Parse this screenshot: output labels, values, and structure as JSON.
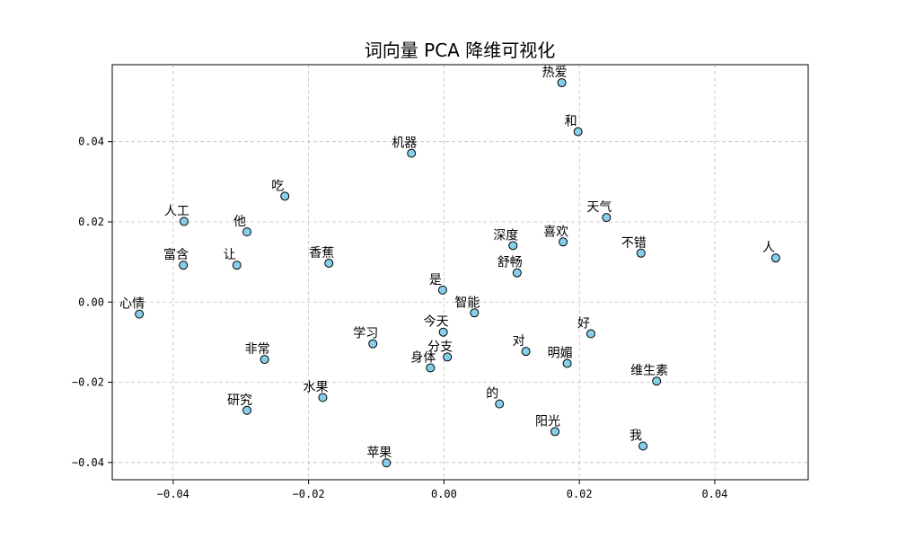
{
  "chart_data": {
    "type": "scatter",
    "title": "词向量 PCA 降维可视化",
    "xlabel": "",
    "ylabel": "",
    "xlim": [
      -0.049,
      0.0538
    ],
    "ylim": [
      -0.0443,
      0.0592
    ],
    "xticks": [
      -0.04,
      -0.02,
      0.0,
      0.02,
      0.04
    ],
    "yticks": [
      -0.04,
      -0.02,
      0.0,
      0.02,
      0.04
    ],
    "xtick_labels": [
      "−0.04",
      "−0.02",
      "0.00",
      "0.02",
      "0.04"
    ],
    "ytick_labels": [
      "−0.04",
      "−0.02",
      "0.00",
      "0.02",
      "0.04"
    ],
    "grid": true,
    "point_color": "#87ceeb",
    "points": [
      {
        "label": "热爱",
        "x": 0.0174,
        "y": 0.0547
      },
      {
        "label": "和",
        "x": 0.0198,
        "y": 0.0425
      },
      {
        "label": "机器",
        "x": -0.0048,
        "y": 0.0371
      },
      {
        "label": "吃",
        "x": -0.0235,
        "y": 0.0264
      },
      {
        "label": "人工",
        "x": -0.0384,
        "y": 0.0201
      },
      {
        "label": "他",
        "x": -0.0291,
        "y": 0.0175
      },
      {
        "label": "天气",
        "x": 0.024,
        "y": 0.0211
      },
      {
        "label": "深度",
        "x": 0.0102,
        "y": 0.0141
      },
      {
        "label": "喜欢",
        "x": 0.0176,
        "y": 0.015
      },
      {
        "label": "不错",
        "x": 0.0291,
        "y": 0.0122
      },
      {
        "label": "人",
        "x": 0.049,
        "y": 0.011
      },
      {
        "label": "富含",
        "x": -0.0385,
        "y": 0.0092
      },
      {
        "label": "让",
        "x": -0.0306,
        "y": 0.0092
      },
      {
        "label": "香蕉",
        "x": -0.017,
        "y": 0.0097
      },
      {
        "label": "舒畅",
        "x": 0.0108,
        "y": 0.0073
      },
      {
        "label": "是",
        "x": -0.0002,
        "y": 0.003
      },
      {
        "label": "智能",
        "x": 0.0045,
        "y": -0.0027
      },
      {
        "label": "心情",
        "x": -0.045,
        "y": -0.003
      },
      {
        "label": "今天",
        "x": -0.0001,
        "y": -0.0075
      },
      {
        "label": "好",
        "x": 0.0217,
        "y": -0.0079
      },
      {
        "label": "学习",
        "x": -0.0105,
        "y": -0.0104
      },
      {
        "label": "对",
        "x": 0.0121,
        "y": -0.0123
      },
      {
        "label": "非常",
        "x": -0.0265,
        "y": -0.0143
      },
      {
        "label": "分支",
        "x": 0.0005,
        "y": -0.0137
      },
      {
        "label": "明媚",
        "x": 0.0182,
        "y": -0.0153
      },
      {
        "label": "身体",
        "x": -0.002,
        "y": -0.0164
      },
      {
        "label": "维生素",
        "x": 0.0314,
        "y": -0.0197
      },
      {
        "label": "水果",
        "x": -0.0179,
        "y": -0.0238
      },
      {
        "label": "研究",
        "x": -0.0291,
        "y": -0.027
      },
      {
        "label": "的",
        "x": 0.0082,
        "y": -0.0254
      },
      {
        "label": "阳光",
        "x": 0.0164,
        "y": -0.0323
      },
      {
        "label": "我",
        "x": 0.0294,
        "y": -0.0359
      },
      {
        "label": "苹果",
        "x": -0.0085,
        "y": -0.0401
      }
    ]
  }
}
